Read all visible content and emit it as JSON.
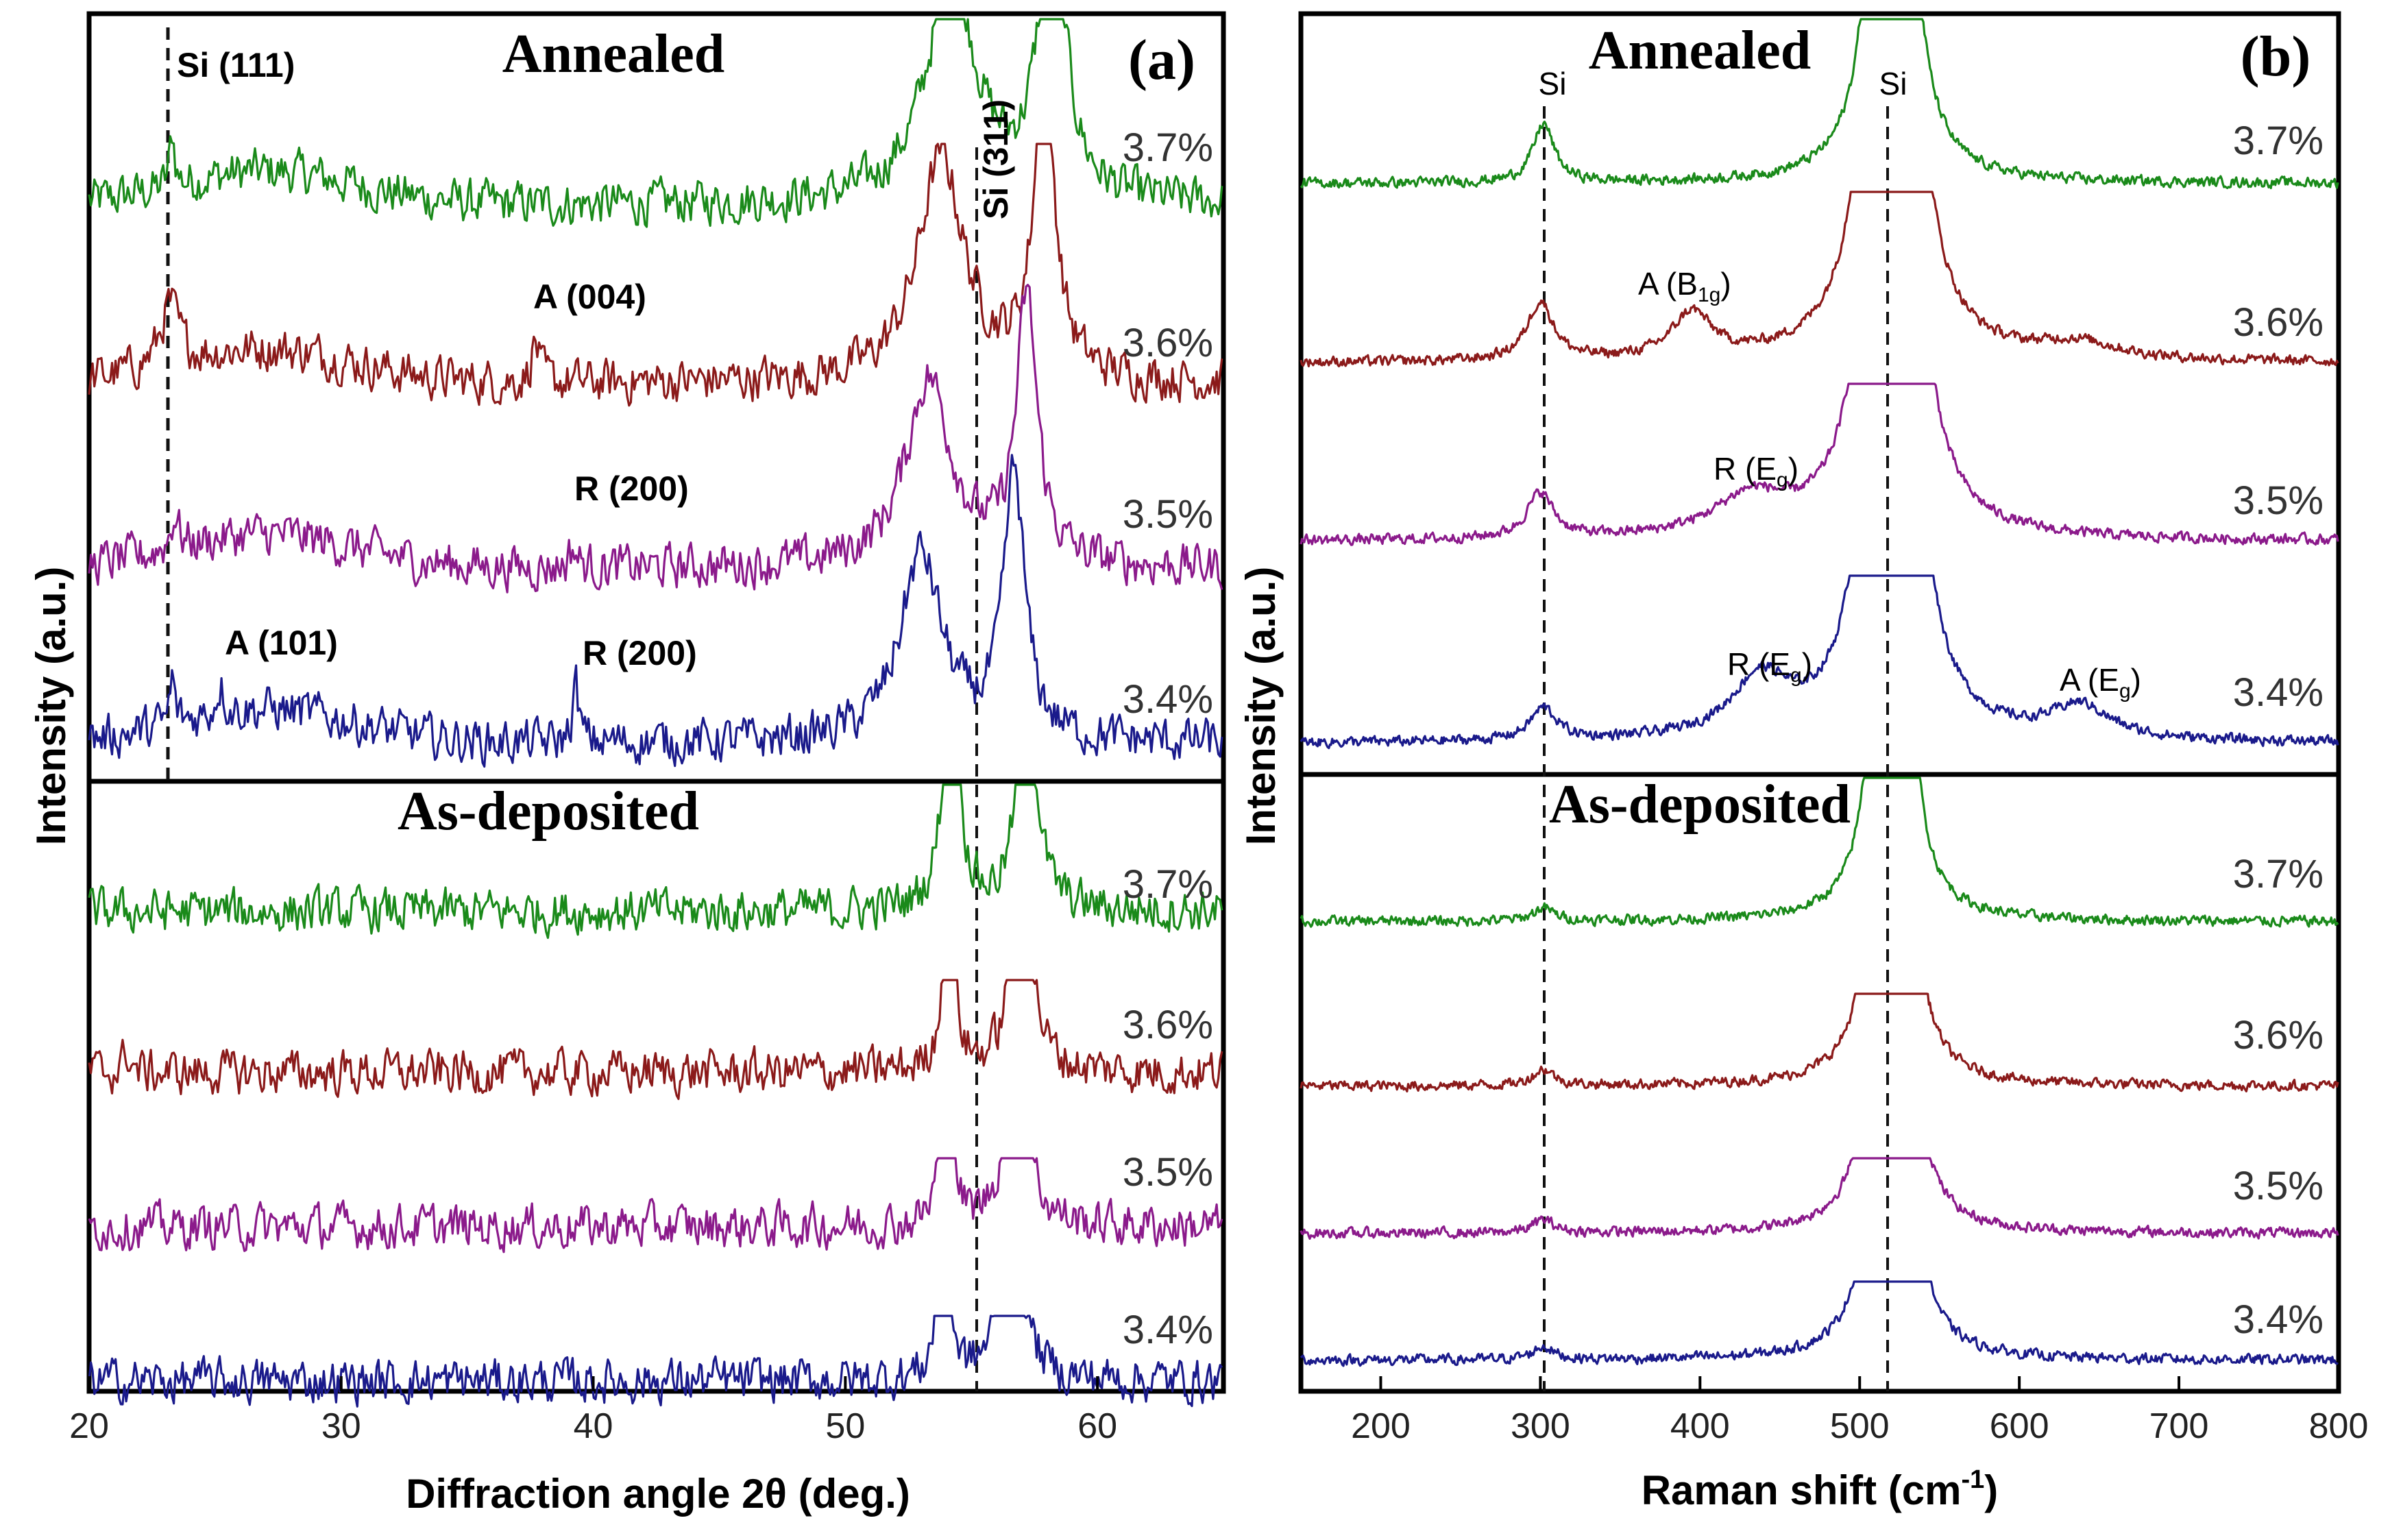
{
  "chart_data": [
    {
      "id": "a",
      "type": "line",
      "panel_label": "(a)",
      "xlabel": "Diffraction angle 2θ (deg.)",
      "ylabel": "Intensity (a.u.)",
      "xlim": [
        20,
        65
      ],
      "xticks": [
        20,
        30,
        40,
        50,
        60
      ],
      "sections": [
        {
          "title": "Annealed"
        },
        {
          "title": "As-deposited"
        }
      ],
      "series": [
        {
          "name": "3.7%",
          "section": 0,
          "color": "#1a8a1a",
          "peaks": [
            [
              23.3,
              1.4,
              0.12
            ],
            [
              54.2,
              6,
              1.2
            ],
            [
              58.2,
              8,
              0.6
            ]
          ]
        },
        {
          "name": "3.6%",
          "section": 0,
          "color": "#8b1a1a",
          "peaks": [
            [
              23.2,
              1.6,
              0.45
            ],
            [
              37.7,
              1.1,
              0.18
            ],
            [
              53.8,
              6,
              1.1
            ],
            [
              57.9,
              8,
              0.5
            ]
          ]
        },
        {
          "name": "3.5%",
          "section": 0,
          "color": "#8b1a8b",
          "peaks": [
            [
              23.4,
              0.9,
              0.2
            ],
            [
              39.2,
              0.5,
              0.2
            ],
            [
              53.3,
              5,
              1.1
            ],
            [
              57.2,
              7,
              0.5
            ]
          ]
        },
        {
          "name": "3.4%",
          "section": 0,
          "color": "#1a1a8b",
          "peaks": [
            [
              23.3,
              1.2,
              0.12
            ],
            [
              25.2,
              0.8,
              0.18
            ],
            [
              39.3,
              1.5,
              0.15
            ],
            [
              53.0,
              5,
              1.0
            ],
            [
              56.7,
              7,
              0.5
            ]
          ]
        },
        {
          "name": "3.7%",
          "section": 1,
          "color": "#1a8a1a",
          "peaks": [
            [
              54.2,
              7,
              0.35
            ],
            [
              57.2,
              7,
              0.4
            ]
          ]
        },
        {
          "name": "3.6%",
          "section": 1,
          "color": "#8b1a1a",
          "peaks": [
            [
              21.5,
              0.6,
              0.15
            ],
            [
              54.1,
              8,
              0.2
            ],
            [
              57.0,
              7,
              0.4
            ]
          ]
        },
        {
          "name": "3.5%",
          "section": 1,
          "color": "#8b1a8b",
          "peaks": [
            [
              54.0,
              8,
              0.18
            ],
            [
              56.8,
              7,
              0.4
            ]
          ]
        },
        {
          "name": "3.4%",
          "section": 1,
          "color": "#1a1a8b",
          "peaks": [
            [
              53.9,
              8,
              0.18
            ],
            [
              56.6,
              7,
              0.4
            ]
          ]
        }
      ],
      "annotations": [
        {
          "text": "Si (111)",
          "x": 23.3,
          "section": 0
        },
        {
          "text": "Si (311)",
          "x": 55.3,
          "section": 0,
          "rotated": true
        },
        {
          "text": "A (004)",
          "x": 37.6,
          "section": 0
        },
        {
          "text": "R (200)",
          "x": 39.2,
          "section": 0
        },
        {
          "text": "A (101)",
          "x": 25.2,
          "section": 0
        },
        {
          "text": "R (200)",
          "x": 39.5,
          "section": 0
        }
      ],
      "dashed_lines_x": [
        23.3,
        55.3
      ]
    },
    {
      "id": "b",
      "type": "line",
      "panel_label": "(b)",
      "xlabel": "Raman shift (cm",
      "xlabel_sup": "-1",
      "xlabel_end": ")",
      "ylabel": "Intensity (a.u.)",
      "xlim": [
        150,
        800
      ],
      "xticks": [
        200,
        300,
        400,
        500,
        600,
        700,
        800
      ],
      "sections": [
        {
          "title": "Annealed"
        },
        {
          "title": "As-deposited"
        }
      ],
      "series": [
        {
          "name": "3.7%",
          "section": 0,
          "color": "#1a8a1a",
          "peaks": [
            [
              302,
              0.9,
              8
            ],
            [
              520,
              30,
              6
            ]
          ]
        },
        {
          "name": "3.6%",
          "section": 0,
          "color": "#8b1a1a",
          "peaks": [
            [
              300,
              0.9,
              10
            ],
            [
              395,
              0.7,
              15
            ],
            [
              520,
              30,
              8
            ],
            [
              637,
              0.25,
              30
            ]
          ]
        },
        {
          "name": "3.5%",
          "section": 0,
          "color": "#8b1a8b",
          "peaks": [
            [
              300,
              0.7,
              10
            ],
            [
              432,
              0.6,
              28
            ],
            [
              520,
              30,
              8
            ]
          ]
        },
        {
          "name": "3.4%",
          "section": 0,
          "color": "#1a1a8b",
          "peaks": [
            [
              302,
              0.5,
              10
            ],
            [
              438,
              0.9,
              22
            ],
            [
              520,
              30,
              8
            ],
            [
              638,
              0.5,
              22
            ]
          ]
        },
        {
          "name": "3.7%",
          "section": 1,
          "color": "#1a8a1a",
          "peaks": [
            [
              302,
              0.2,
              8
            ],
            [
              520,
              30,
              5
            ]
          ]
        },
        {
          "name": "3.6%",
          "section": 1,
          "color": "#8b1a1a",
          "peaks": [
            [
              302,
              0.25,
              8
            ],
            [
              520,
              30,
              5
            ]
          ]
        },
        {
          "name": "3.5%",
          "section": 1,
          "color": "#8b1a8b",
          "peaks": [
            [
              302,
              0.2,
              8
            ],
            [
              520,
              30,
              5
            ]
          ]
        },
        {
          "name": "3.4%",
          "section": 1,
          "color": "#1a1a8b",
          "peaks": [
            [
              302,
              0.2,
              8
            ],
            [
              520,
              30,
              5
            ]
          ]
        }
      ],
      "annotations": [
        {
          "text": "Si",
          "x": 302,
          "section": 0
        },
        {
          "text": "Si",
          "x": 517,
          "section": 0
        },
        {
          "text": "A (B",
          "sub": "1g",
          "end": ")",
          "x": 395,
          "section": 0
        },
        {
          "text": "R (E",
          "sub": "g",
          "end": ")",
          "x": 430,
          "section": 0
        },
        {
          "text": "R (E",
          "sub": "g",
          "end": ")",
          "x": 438,
          "section": 0
        },
        {
          "text": "A (E",
          "sub": "g",
          "end": ")",
          "x": 638,
          "section": 0
        }
      ],
      "dashed_lines_x": [
        302,
        517
      ]
    }
  ]
}
